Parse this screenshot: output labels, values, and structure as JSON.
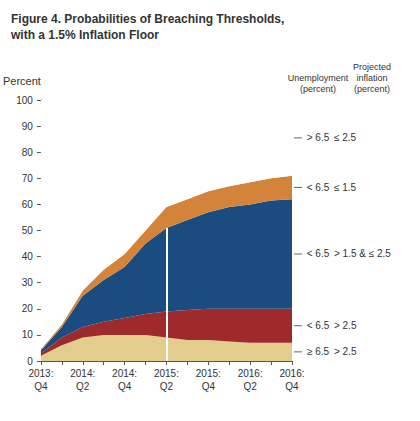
{
  "chart_data": {
    "type": "area",
    "title": "Figure 4. Probabilities of Breaching Thresholds,\nwith a 1.5% Inflation Floor",
    "ylabel": "Percent",
    "stacked": true,
    "grid": false,
    "categories": [
      "2013:\nQ4",
      null,
      "2014:\nQ2",
      null,
      "2014:\nQ4",
      null,
      "2015:\nQ2",
      null,
      "2015:\nQ4",
      null,
      "2016:\nQ2",
      null,
      "2016:\nQ4"
    ],
    "ylim": [
      0,
      100
    ],
    "yticks": [
      0,
      10,
      20,
      30,
      40,
      50,
      60,
      70,
      80,
      90,
      100
    ],
    "column_headers": [
      "Unemployment\n(percent)",
      "Projected\ninflation\n(percent)"
    ],
    "series": [
      {
        "unemployment": "≥ 6.5",
        "inflation": "> 2.5",
        "color": "#E2CD8C",
        "values": [
          2,
          6,
          9,
          10,
          10,
          10,
          9,
          8,
          8,
          7.5,
          7,
          7,
          7
        ]
      },
      {
        "unemployment": "< 6.5",
        "inflation": "> 2.5",
        "color": "#9E2A2B",
        "values": [
          1,
          3,
          4,
          5,
          6.5,
          8,
          10,
          11.5,
          12,
          12.5,
          13,
          13,
          13
        ]
      },
      {
        "unemployment": "< 6.5",
        "inflation": "> 1.5 & ≤ 2.5",
        "color": "#1B4C80",
        "values": [
          1,
          4,
          12,
          16,
          19.5,
          27,
          32,
          34.5,
          37,
          39,
          40,
          41.5,
          42
        ]
      },
      {
        "unemployment": "< 6.5",
        "inflation": "≤ 1.5",
        "color": "#D3843A",
        "values": [
          0.5,
          1,
          2,
          4,
          5,
          5,
          8,
          8,
          8,
          8,
          8.5,
          8.5,
          9
        ]
      },
      {
        "unemployment": "> 6.5",
        "inflation": "≤ 2.5",
        "color": "#FFFFFF",
        "values": [
          95.5,
          86,
          73,
          65,
          59,
          50,
          41,
          38,
          35,
          33,
          31.5,
          30,
          29
        ]
      }
    ],
    "vertical_line": {
      "x": "2015:\nQ2",
      "y": [
        0,
        51
      ]
    }
  }
}
